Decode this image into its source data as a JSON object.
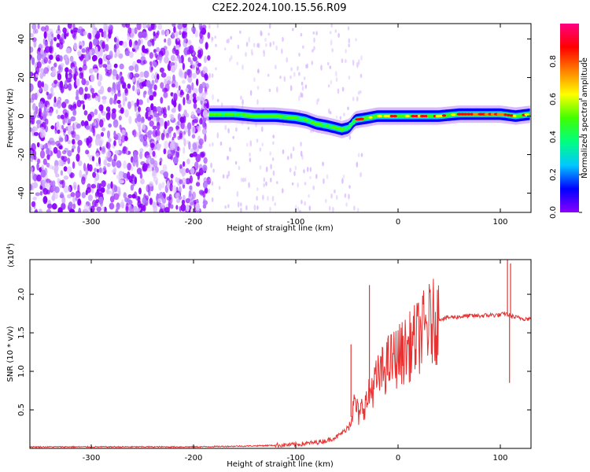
{
  "title": "C2E2.2024.100.15.56.R09",
  "chart_data": [
    {
      "type": "heatmap",
      "xlabel": "Height of straight line (km)",
      "ylabel": "Frequency (Hz)",
      "xlim": [
        -360,
        130
      ],
      "ylim": [
        -50,
        48
      ],
      "xticks": [
        -300,
        -200,
        -100,
        0,
        100
      ],
      "yticks": [
        -40,
        -20,
        0,
        20,
        40
      ],
      "colorbar": {
        "label": "Normalized spectral amplitude",
        "range": [
          0.0,
          1.0
        ],
        "ticks": [
          0.0,
          0.2,
          0.4,
          0.6,
          0.8
        ]
      },
      "colors": {
        "colormap": [
          "#8a00ff",
          "#0000ff",
          "#00c8ff",
          "#00ff80",
          "#40ff00",
          "#ffff00",
          "#ff8000",
          "#ff0000",
          "#ff0080"
        ]
      },
      "noise_region_x": [
        -360,
        -185
      ],
      "ridge": [
        {
          "x": -185,
          "y": 1
        },
        {
          "x": -160,
          "y": 1
        },
        {
          "x": -140,
          "y": 0
        },
        {
          "x": -120,
          "y": 0
        },
        {
          "x": -100,
          "y": -1
        },
        {
          "x": -90,
          "y": -2
        },
        {
          "x": -80,
          "y": -4
        },
        {
          "x": -70,
          "y": -5
        },
        {
          "x": -62,
          "y": -6
        },
        {
          "x": -55,
          "y": -7
        },
        {
          "x": -48,
          "y": -6
        },
        {
          "x": -42,
          "y": -2
        },
        {
          "x": -30,
          "y": -1
        },
        {
          "x": -20,
          "y": 0
        },
        {
          "x": 0,
          "y": 0
        },
        {
          "x": 20,
          "y": 0
        },
        {
          "x": 40,
          "y": 0
        },
        {
          "x": 60,
          "y": 1
        },
        {
          "x": 80,
          "y": 1
        },
        {
          "x": 100,
          "y": 1
        },
        {
          "x": 115,
          "y": 0
        },
        {
          "x": 130,
          "y": 1
        }
      ]
    },
    {
      "type": "line",
      "xlabel": "Height of straight line (km)",
      "ylabel": "SNR (10 * v/v)",
      "y_multiplier": "(x10",
      "y_multiplier_exp": "4",
      "xlim": [
        -360,
        130
      ],
      "ylim": [
        0,
        2.45
      ],
      "xticks": [
        -300,
        -200,
        -100,
        0,
        100
      ],
      "yticks": [
        0.5,
        1.0,
        1.5,
        2.0
      ],
      "ytick_labels": [
        "0.5",
        "1.0",
        "1.5",
        "2.0"
      ],
      "colors": {
        "line": "#e83232"
      },
      "series": [
        {
          "x": [
            -360,
            -300,
            -250,
            -200,
            -150,
            -120,
            -100,
            -85,
            -70,
            -60,
            -50,
            -45,
            -42,
            -38,
            -35,
            -30,
            -28,
            -25,
            -20,
            -15,
            -10,
            -5,
            0,
            10,
            20,
            30,
            40,
            50,
            60,
            70,
            80,
            90,
            100,
            105,
            110,
            115,
            120,
            130
          ],
          "values": [
            0.02,
            0.02,
            0.02,
            0.02,
            0.03,
            0.04,
            0.05,
            0.07,
            0.1,
            0.15,
            0.25,
            0.45,
            0.6,
            0.4,
            0.55,
            0.6,
            0.7,
            0.8,
            0.9,
            1.0,
            1.1,
            1.15,
            1.2,
            1.3,
            1.45,
            1.6,
            1.68,
            1.7,
            1.71,
            1.72,
            1.72,
            1.73,
            1.73,
            1.75,
            1.72,
            1.7,
            1.69,
            1.68
          ]
        }
      ],
      "spikes": [
        {
          "x": -46,
          "y": 1.35
        },
        {
          "x": -28,
          "y": 2.12
        },
        {
          "x": 107,
          "y": 2.45
        },
        {
          "x": 109,
          "y": 0.85
        },
        {
          "x": 110,
          "y": 2.4
        }
      ]
    }
  ]
}
